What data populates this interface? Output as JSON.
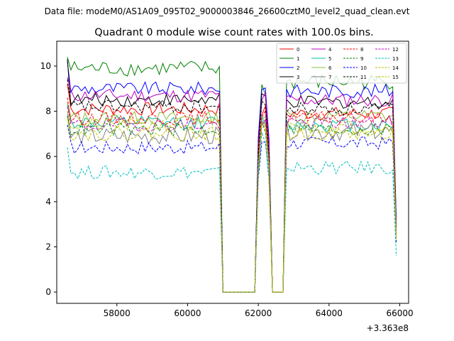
{
  "header": {
    "data_file": "Data file: modeM0/AS1A09_095T02_9000003846_26600cztM0_level2_quad_clean.evt"
  },
  "chart_data": {
    "type": "line",
    "title": "Quadrant 0 module wise count rates with 100.0s bins.",
    "xlabel": "",
    "ylabel": "",
    "x_offset_label": "+3.363e8",
    "xlim": [
      56300,
      66250
    ],
    "ylim": [
      -0.5,
      11.1
    ],
    "x_ticks": [
      58000,
      60000,
      62000,
      64000,
      66000
    ],
    "y_ticks": [
      0,
      2,
      4,
      6,
      8,
      10
    ],
    "x_tick_labels": [
      "58000",
      "60000",
      "62000",
      "64000",
      "66000"
    ],
    "y_tick_labels": [
      "0",
      "2",
      "4",
      "6",
      "8",
      "10"
    ],
    "legend_position": "top-right",
    "x_segments": {
      "seg_a": [
        56600,
        60900
      ],
      "gap_a": [
        61000,
        61900
      ],
      "seg_b": [
        62000,
        62300
      ],
      "gap_b": [
        62400,
        62700
      ],
      "seg_c": [
        62800,
        65900
      ]
    },
    "series": [
      {
        "name": "0",
        "color": "#ff0000",
        "dash": "solid",
        "level_a": 8.1,
        "level_b": 8.0,
        "level_c": 7.9,
        "first": 9.2,
        "last": 2.5,
        "noise": 0.3
      },
      {
        "name": "1",
        "color": "#008000",
        "dash": "solid",
        "level_a": 9.9,
        "level_b": 9.0,
        "level_c": 9.3,
        "first": 10.4,
        "last": 3.2,
        "noise": 0.35
      },
      {
        "name": "2",
        "color": "#0000ff",
        "dash": "solid",
        "level_a": 9.0,
        "level_b": 9.1,
        "level_c": 8.9,
        "first": 10.2,
        "last": 3.0,
        "noise": 0.3
      },
      {
        "name": "3",
        "color": "#000000",
        "dash": "solid",
        "level_a": 8.5,
        "level_b": 8.6,
        "level_c": 8.4,
        "first": 10.3,
        "last": 2.9,
        "noise": 0.3
      },
      {
        "name": "4",
        "color": "#bf00bf",
        "dash": "solid",
        "level_a": 8.7,
        "level_b": 8.6,
        "level_c": 8.5,
        "first": 9.5,
        "last": 3.0,
        "noise": 0.3
      },
      {
        "name": "5",
        "color": "#00bfa0",
        "dash": "solid",
        "level_a": 7.5,
        "level_b": 7.6,
        "level_c": 7.4,
        "first": 8.3,
        "last": 2.6,
        "noise": 0.3
      },
      {
        "name": "6",
        "color": "#8bbf40",
        "dash": "solid",
        "level_a": 7.7,
        "level_b": 7.8,
        "level_c": 7.8,
        "first": 8.4,
        "last": 2.7,
        "noise": 0.3
      },
      {
        "name": "7",
        "color": "#808080",
        "dash": "solid",
        "level_a": 6.9,
        "level_b": 7.3,
        "level_c": 7.1,
        "first": 8.0,
        "last": 2.4,
        "noise": 0.4
      },
      {
        "name": "8",
        "color": "#ff0000",
        "dash": "dashed",
        "level_a": 7.7,
        "level_b": 7.8,
        "level_c": 7.7,
        "first": 8.6,
        "last": 2.6,
        "noise": 0.3
      },
      {
        "name": "9",
        "color": "#008000",
        "dash": "dashed",
        "level_a": 7.2,
        "level_b": 7.3,
        "level_c": 7.2,
        "first": 7.8,
        "last": 2.5,
        "noise": 0.3
      },
      {
        "name": "10",
        "color": "#0000ff",
        "dash": "dashed",
        "level_a": 6.4,
        "level_b": 6.7,
        "level_c": 6.6,
        "first": 7.4,
        "last": 2.2,
        "noise": 0.3
      },
      {
        "name": "11",
        "color": "#000000",
        "dash": "dashed",
        "level_a": 8.2,
        "level_b": 8.2,
        "level_c": 8.1,
        "first": 9.4,
        "last": 2.8,
        "noise": 0.3
      },
      {
        "name": "12",
        "color": "#bf00bf",
        "dash": "dashed",
        "level_a": 7.4,
        "level_b": 7.4,
        "level_c": 7.5,
        "first": 8.2,
        "last": 2.6,
        "noise": 0.3
      },
      {
        "name": "13",
        "color": "#00bfbf",
        "dash": "dashed",
        "level_a": 5.3,
        "level_b": 6.8,
        "level_c": 5.5,
        "first": 6.4,
        "last": 1.6,
        "noise": 0.3
      },
      {
        "name": "14",
        "color": "#bfbf00",
        "dash": "dashed",
        "level_a": 7.4,
        "level_b": 7.5,
        "level_c": 7.3,
        "first": 8.0,
        "last": 2.5,
        "noise": 0.3
      },
      {
        "name": "15",
        "color": "#bfbf00",
        "dash": "dashed",
        "level_a": 7.0,
        "level_b": 7.2,
        "level_c": 7.0,
        "first": 7.7,
        "last": 2.3,
        "noise": 0.3
      }
    ]
  }
}
